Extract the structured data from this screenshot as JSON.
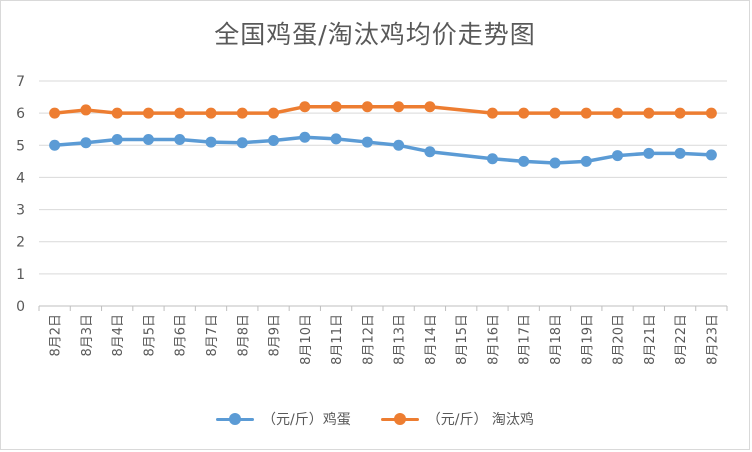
{
  "chart_data": {
    "type": "line",
    "title": "全国鸡蛋/淘汰鸡均价走势图",
    "xlabel": "",
    "ylabel": "",
    "ylim": [
      0,
      7
    ],
    "yticks": [
      0,
      1,
      2,
      3,
      4,
      5,
      6,
      7
    ],
    "grid": true,
    "legend_position": "bottom",
    "categories": [
      "8月2日",
      "8月3日",
      "8月4日",
      "8月5日",
      "8月6日",
      "8月7日",
      "8月8日",
      "8月9日",
      "8月10日",
      "8月11日",
      "8月12日",
      "8月13日",
      "8月14日",
      "8月15日",
      "8月16日",
      "8月17日",
      "8月18日",
      "8月19日",
      "8月20日",
      "8月21日",
      "8月22日",
      "8月23日"
    ],
    "series": [
      {
        "name": "（元/斤）鸡蛋",
        "color": "#5b9bd5",
        "values": [
          5.0,
          5.08,
          5.18,
          5.18,
          5.18,
          5.1,
          5.08,
          5.15,
          5.25,
          5.2,
          5.1,
          5.0,
          4.8,
          null,
          4.58,
          4.5,
          4.45,
          4.5,
          4.68,
          4.75,
          4.75,
          4.7
        ]
      },
      {
        "name": "（元/斤） 淘汰鸡",
        "color": "#ed7d31",
        "values": [
          6.0,
          6.1,
          6.0,
          6.0,
          6.0,
          6.0,
          6.0,
          6.0,
          6.2,
          6.2,
          6.2,
          6.2,
          6.2,
          null,
          6.0,
          6.0,
          6.0,
          6.0,
          6.0,
          6.0,
          6.0,
          6.0
        ]
      }
    ]
  }
}
